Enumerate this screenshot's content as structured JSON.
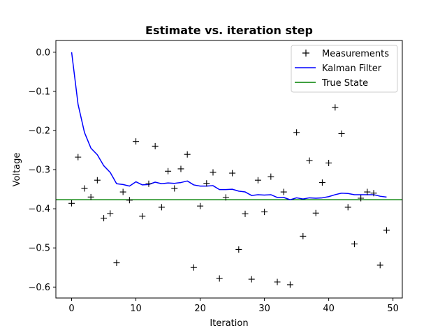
{
  "chart_data": {
    "type": "line",
    "title": "Estimate vs. iteration step",
    "xlabel": "Iteration",
    "ylabel": "Voltage",
    "xlim": [
      -2.45,
      51.45
    ],
    "ylim": [
      -0.628,
      0.03
    ],
    "xticks": [
      0,
      10,
      20,
      30,
      40,
      50
    ],
    "yticks": [
      0.0,
      -0.1,
      -0.2,
      -0.3,
      -0.4,
      -0.5,
      -0.6
    ],
    "ytick_labels": [
      "0.0",
      "−0.1",
      "−0.2",
      "−0.3",
      "−0.4",
      "−0.5",
      "−0.6"
    ],
    "grid": false,
    "legend_position": "top-right",
    "series": [
      {
        "name": "Measurements",
        "kind": "scatter",
        "marker": "+",
        "color": "#000000",
        "x": [
          0,
          1,
          2,
          3,
          4,
          5,
          6,
          7,
          8,
          9,
          10,
          11,
          12,
          13,
          14,
          15,
          16,
          17,
          18,
          19,
          20,
          21,
          22,
          23,
          24,
          25,
          26,
          27,
          28,
          29,
          30,
          31,
          32,
          33,
          34,
          35,
          36,
          37,
          38,
          39,
          40,
          41,
          42,
          43,
          44,
          45,
          46,
          47,
          48,
          49
        ],
        "y": [
          -0.386,
          -0.268,
          -0.348,
          -0.37,
          -0.327,
          -0.424,
          -0.412,
          -0.538,
          -0.357,
          -0.378,
          -0.228,
          -0.419,
          -0.336,
          -0.24,
          -0.396,
          -0.304,
          -0.348,
          -0.298,
          -0.261,
          -0.55,
          -0.393,
          -0.335,
          -0.307,
          -0.578,
          -0.371,
          -0.309,
          -0.504,
          -0.413,
          -0.58,
          -0.327,
          -0.408,
          -0.318,
          -0.587,
          -0.357,
          -0.594,
          -0.205,
          -0.47,
          -0.277,
          -0.411,
          -0.333,
          -0.283,
          -0.141,
          -0.208,
          -0.396,
          -0.49,
          -0.373,
          -0.357,
          -0.36,
          -0.544,
          -0.455
        ]
      },
      {
        "name": "Kalman Filter",
        "kind": "line",
        "color": "#0000ff",
        "x": [
          0,
          1,
          2,
          3,
          4,
          5,
          6,
          7,
          8,
          9,
          10,
          11,
          12,
          13,
          14,
          15,
          16,
          17,
          18,
          19,
          20,
          21,
          22,
          23,
          24,
          25,
          26,
          27,
          28,
          29,
          30,
          31,
          32,
          33,
          34,
          35,
          36,
          37,
          38,
          39,
          40,
          41,
          42,
          43,
          44,
          45,
          46,
          47,
          48,
          49
        ],
        "y": [
          0.0,
          -0.133,
          -0.205,
          -0.245,
          -0.262,
          -0.29,
          -0.307,
          -0.336,
          -0.338,
          -0.342,
          -0.331,
          -0.339,
          -0.338,
          -0.332,
          -0.336,
          -0.334,
          -0.335,
          -0.333,
          -0.329,
          -0.339,
          -0.342,
          -0.342,
          -0.341,
          -0.351,
          -0.351,
          -0.35,
          -0.355,
          -0.357,
          -0.366,
          -0.364,
          -0.365,
          -0.364,
          -0.371,
          -0.371,
          -0.377,
          -0.372,
          -0.375,
          -0.372,
          -0.373,
          -0.372,
          -0.369,
          -0.364,
          -0.36,
          -0.361,
          -0.364,
          -0.364,
          -0.364,
          -0.364,
          -0.368,
          -0.37
        ]
      },
      {
        "name": "True State",
        "kind": "hline",
        "color": "#008000",
        "y": -0.377
      }
    ]
  }
}
